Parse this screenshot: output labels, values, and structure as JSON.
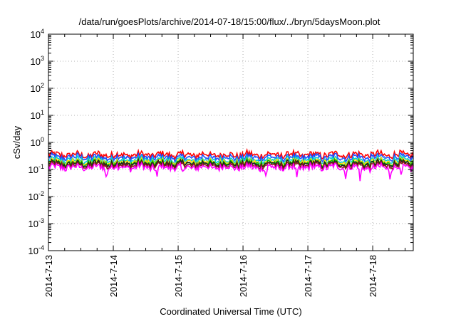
{
  "chart_data": {
    "type": "line",
    "title": "/data/run/goesPlots/archive/2014-07-18/15:00/flux/../bryn/5daysMoon.plot",
    "xlabel": "Coordinated Universal Time (UTC)",
    "ylabel": "cSv/day",
    "y_scale": "log",
    "ylim": [
      0.0001,
      10000
    ],
    "y_ticks": [
      {
        "base": "10",
        "exp": "-4"
      },
      {
        "base": "10",
        "exp": "-3"
      },
      {
        "base": "10",
        "exp": "-2"
      },
      {
        "base": "10",
        "exp": "-1"
      },
      {
        "base": "10",
        "exp": "0"
      },
      {
        "base": "10",
        "exp": "1"
      },
      {
        "base": "10",
        "exp": "2"
      },
      {
        "base": "10",
        "exp": "3"
      },
      {
        "base": "10",
        "exp": "4"
      }
    ],
    "xlim": [
      "2014-07-13",
      "2014-07-18 15:00"
    ],
    "x_ticks": [
      "2014-7-13",
      "2014-7-14",
      "2014-7-15",
      "2014-7-16",
      "2014-7-17",
      "2014-7-18"
    ],
    "grid": true,
    "series": [
      {
        "color": "#ff0000",
        "approx_level": 0.35
      },
      {
        "color": "#1f4fff",
        "approx_level": 0.28
      },
      {
        "color": "#00d0d0",
        "approx_level": 0.22
      },
      {
        "color": "#ffd800",
        "approx_level": 0.19
      },
      {
        "color": "#00c000",
        "approx_level": 0.17
      },
      {
        "color": "#202020",
        "approx_level": 0.16
      },
      {
        "color": "#8b1a1a",
        "approx_level": 0.14
      },
      {
        "color": "#ff00ff",
        "approx_level": 0.12
      }
    ]
  }
}
